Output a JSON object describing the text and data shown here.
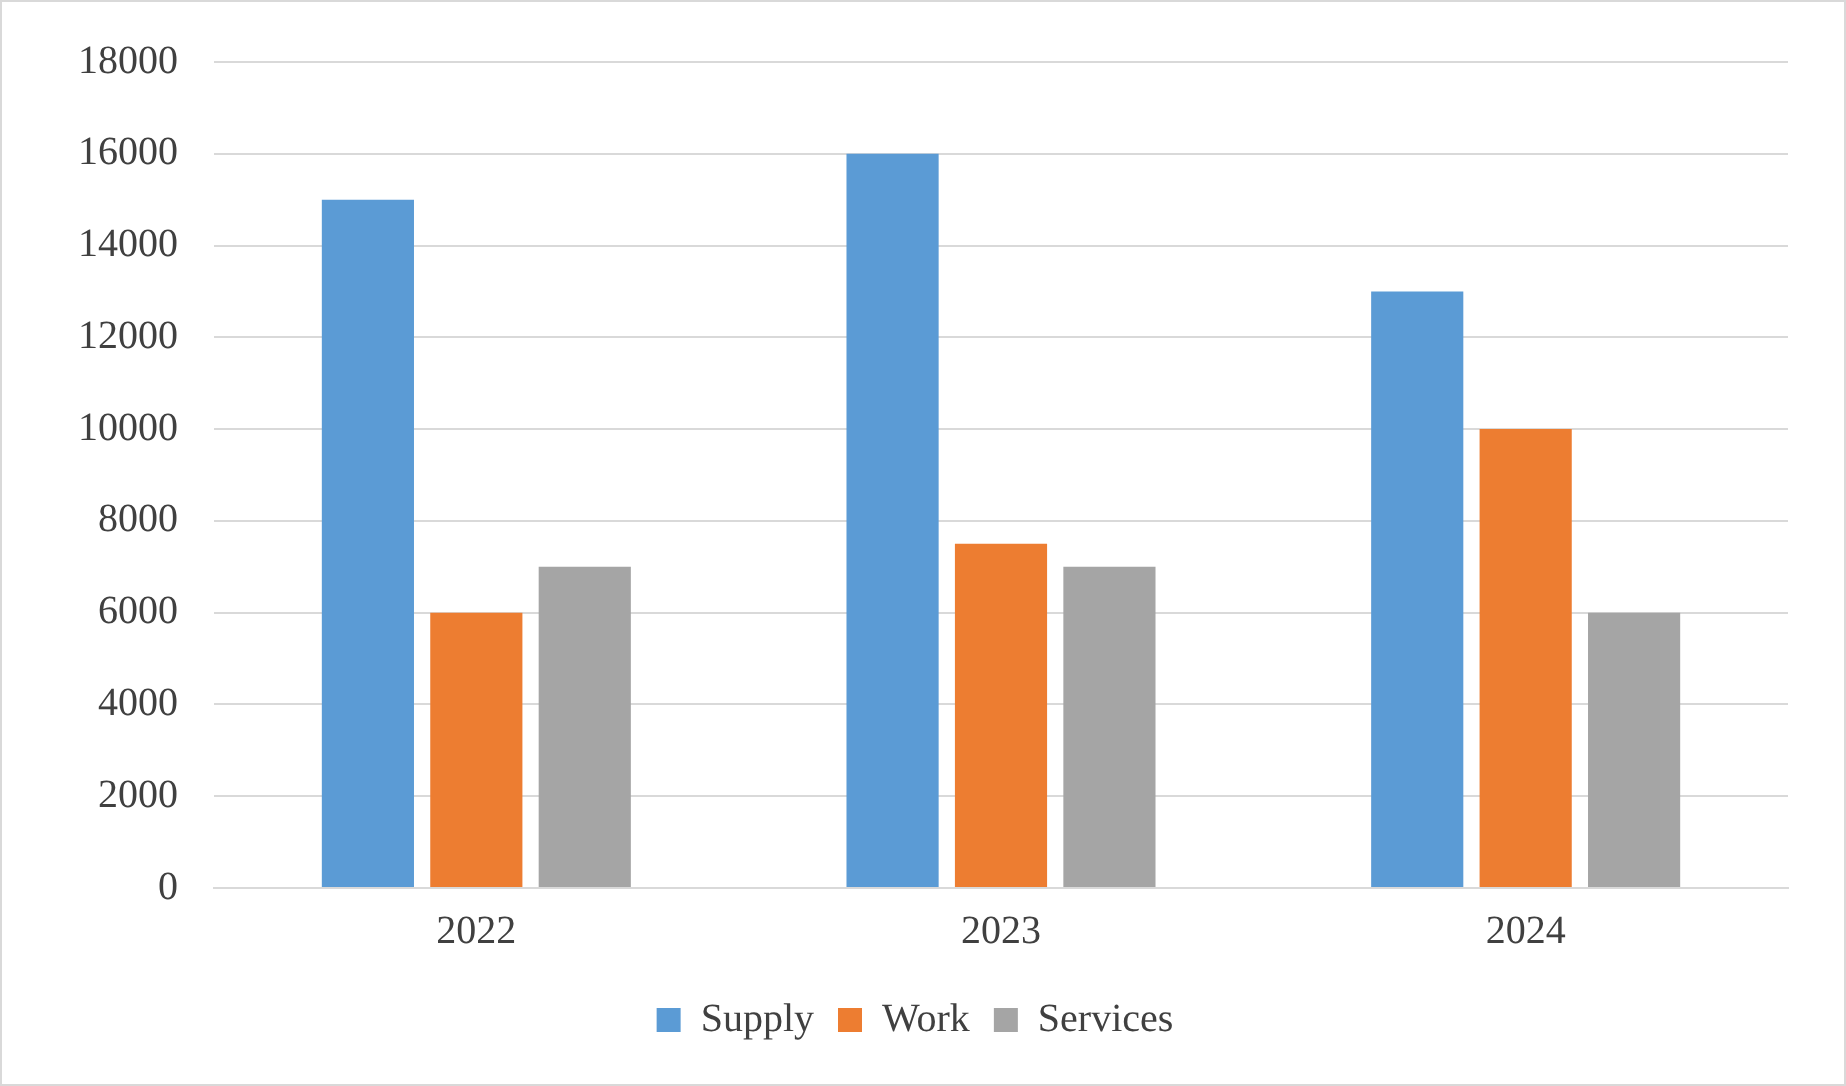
{
  "chart_data": {
    "type": "bar",
    "categories": [
      "2022",
      "2023",
      "2024"
    ],
    "series": [
      {
        "name": "Supply",
        "color": "#5b9bd5",
        "values": [
          15000,
          16000,
          13000
        ]
      },
      {
        "name": "Work",
        "color": "#ed7d31",
        "values": [
          6000,
          7500,
          10000
        ]
      },
      {
        "name": "Services",
        "color": "#a5a5a5",
        "values": [
          7000,
          7000,
          6000
        ]
      }
    ],
    "ylim": [
      0,
      18000
    ],
    "yticks": [
      0,
      2000,
      4000,
      6000,
      8000,
      10000,
      12000,
      14000,
      16000,
      18000
    ],
    "grid": "y",
    "legend": "bottom"
  }
}
